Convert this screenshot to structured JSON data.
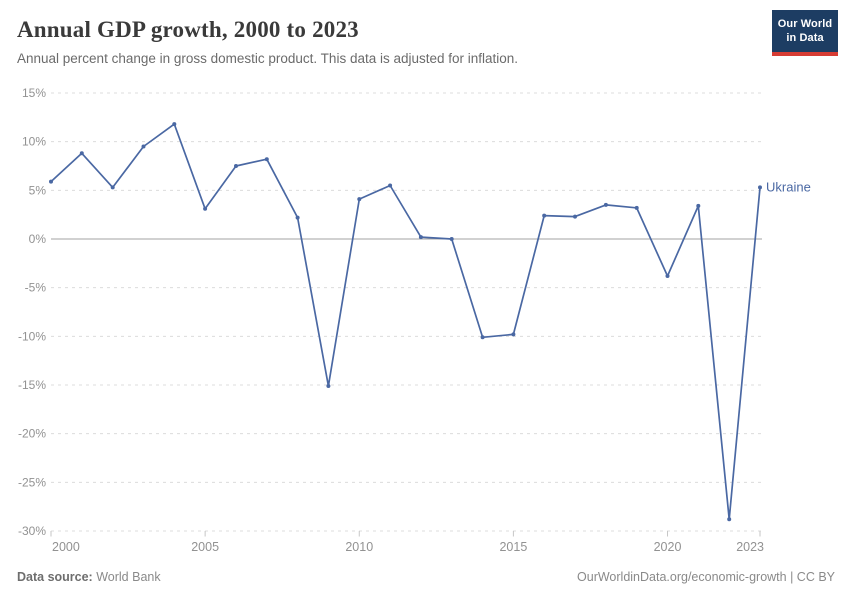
{
  "header": {
    "title": "Annual GDP growth, 2000 to 2023",
    "subtitle": "Annual percent change in gross domestic product. This data is adjusted for inflation.",
    "logo": {
      "line1": "Our World",
      "line2": "in Data",
      "bg_color": "#1d3d63",
      "stripe_color": "#d73c34"
    }
  },
  "footer": {
    "source_label": "Data source:",
    "source_value": "World Bank",
    "link": "OurWorldinData.org/economic-growth",
    "separator": " | ",
    "license": "CC BY"
  },
  "chart_data": {
    "type": "line",
    "title": "Annual GDP growth, 2000 to 2023",
    "entity_label": "Ukraine",
    "x": [
      2000,
      2001,
      2002,
      2003,
      2004,
      2005,
      2006,
      2007,
      2008,
      2009,
      2010,
      2011,
      2012,
      2013,
      2014,
      2015,
      2016,
      2017,
      2018,
      2019,
      2020,
      2021,
      2022,
      2023
    ],
    "series": [
      {
        "name": "Ukraine",
        "values": [
          5.9,
          8.8,
          5.3,
          9.5,
          11.8,
          3.1,
          7.5,
          8.2,
          2.2,
          -15.1,
          4.1,
          5.5,
          0.2,
          0.0,
          -10.1,
          -9.8,
          2.4,
          2.3,
          3.5,
          3.2,
          -3.8,
          3.4,
          -28.8,
          5.3
        ]
      }
    ],
    "xlim": [
      2000,
      2023
    ],
    "ylim": [
      -30,
      15
    ],
    "x_ticks": [
      {
        "value": 2000,
        "label": "2000"
      },
      {
        "value": 2005,
        "label": "2005"
      },
      {
        "value": 2010,
        "label": "2010"
      },
      {
        "value": 2015,
        "label": "2015"
      },
      {
        "value": 2020,
        "label": "2020"
      },
      {
        "value": 2023,
        "label": "2023"
      }
    ],
    "y_ticks": [
      {
        "value": 15,
        "label": "15%"
      },
      {
        "value": 10,
        "label": "10%"
      },
      {
        "value": 5,
        "label": "5%"
      },
      {
        "value": 0,
        "label": "0%"
      },
      {
        "value": -5,
        "label": "-5%"
      },
      {
        "value": -10,
        "label": "-10%"
      },
      {
        "value": -15,
        "label": "-15%"
      },
      {
        "value": -20,
        "label": "-20%"
      },
      {
        "value": -25,
        "label": "-25%"
      },
      {
        "value": -30,
        "label": "-30%"
      }
    ],
    "grid": "horizontal-dashed",
    "legend_position": "end-of-line-label",
    "zero_line": true,
    "colors": {
      "line": "#4a68a3",
      "grid": "#dcdcdc",
      "zero_line": "#a3a3a3",
      "tick_text": "#929292",
      "tick_mark": "#c6c6c6"
    }
  }
}
